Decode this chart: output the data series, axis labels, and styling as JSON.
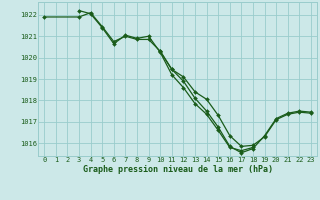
{
  "x": [
    0,
    1,
    2,
    3,
    4,
    5,
    6,
    7,
    8,
    9,
    10,
    11,
    12,
    13,
    14,
    15,
    16,
    17,
    18,
    19,
    20,
    21,
    22,
    23
  ],
  "series_a": [
    1021.9,
    null,
    null,
    1021.9,
    1022.1,
    1021.45,
    1020.75,
    1021.0,
    1020.85,
    1020.85,
    1020.3,
    1019.45,
    1019.1,
    1018.4,
    1018.05,
    1017.3,
    1016.35,
    1015.85,
    1015.9,
    1016.3,
    1017.1,
    1017.35,
    1017.45,
    1017.4
  ],
  "series_b": [
    null,
    null,
    null,
    1022.2,
    1022.05,
    1021.4,
    1020.65,
    1021.05,
    1020.9,
    1021.0,
    1020.25,
    1019.2,
    1018.6,
    1017.85,
    1017.35,
    1016.6,
    1015.8,
    1015.65,
    1015.8,
    null,
    null,
    null,
    null,
    null
  ],
  "series_c": [
    null,
    null,
    null,
    null,
    null,
    null,
    null,
    null,
    null,
    null,
    1020.3,
    1019.45,
    1018.9,
    1018.1,
    1017.5,
    1016.75,
    1015.85,
    1015.55,
    1015.75,
    1016.35,
    1017.15,
    1017.4,
    1017.5,
    1017.45
  ],
  "ylim": [
    1015.4,
    1022.6
  ],
  "yticks": [
    1016,
    1017,
    1018,
    1019,
    1020,
    1021,
    1022
  ],
  "xticks": [
    0,
    1,
    2,
    3,
    4,
    5,
    6,
    7,
    8,
    9,
    10,
    11,
    12,
    13,
    14,
    15,
    16,
    17,
    18,
    19,
    20,
    21,
    22,
    23
  ],
  "xlabel": "Graphe pression niveau de la mer (hPa)",
  "line_color": "#1a5c1a",
  "bg_color": "#cce8e8",
  "grid_color": "#99cccc",
  "marker_size": 2.0,
  "linewidth": 0.9,
  "tick_fontsize": 5.0,
  "xlabel_fontsize": 6.0
}
